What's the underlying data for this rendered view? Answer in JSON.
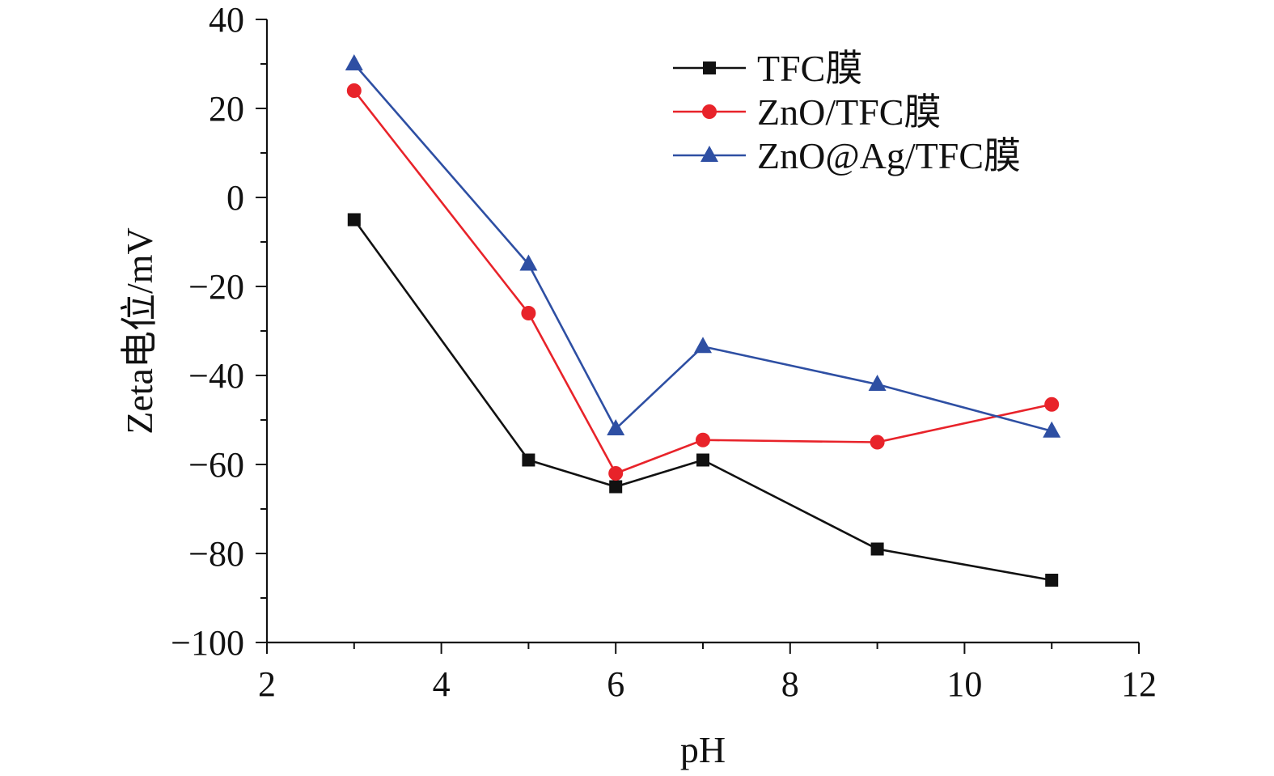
{
  "chart_data": {
    "type": "line",
    "xlabel": "pH",
    "ylabel": "Zeta电位/mV",
    "xlim": [
      2,
      12
    ],
    "ylim": [
      -100,
      40
    ],
    "xticks": [
      2,
      4,
      6,
      8,
      10,
      12
    ],
    "yticks": [
      -100,
      -80,
      -60,
      -40,
      -20,
      0,
      20,
      40
    ],
    "xtick_labels": [
      "2",
      "4",
      "6",
      "8",
      "10",
      "12"
    ],
    "ytick_labels": [
      "−100",
      "−80",
      "−60",
      "−40",
      "−20",
      "0",
      "20",
      "40"
    ],
    "grid": false,
    "legend_position": "top-right",
    "series": [
      {
        "name": "TFC膜",
        "color": "#111111",
        "marker": "square",
        "x": [
          3,
          5,
          6,
          7,
          9,
          11
        ],
        "values": [
          -5,
          -59,
          -65,
          -59,
          -79,
          -86
        ]
      },
      {
        "name": "ZnO/TFC膜",
        "color": "#e8232a",
        "marker": "circle",
        "x": [
          3,
          5,
          6,
          7,
          9,
          11
        ],
        "values": [
          24,
          -26,
          -62,
          -54.5,
          -55,
          -46.5
        ]
      },
      {
        "name": "ZnO@Ag/TFC膜",
        "color": "#2e4fa3",
        "marker": "triangle",
        "x": [
          3,
          5,
          6,
          7,
          9,
          11
        ],
        "values": [
          30,
          -15,
          -52,
          -33.5,
          -42,
          -52.5
        ]
      }
    ]
  }
}
